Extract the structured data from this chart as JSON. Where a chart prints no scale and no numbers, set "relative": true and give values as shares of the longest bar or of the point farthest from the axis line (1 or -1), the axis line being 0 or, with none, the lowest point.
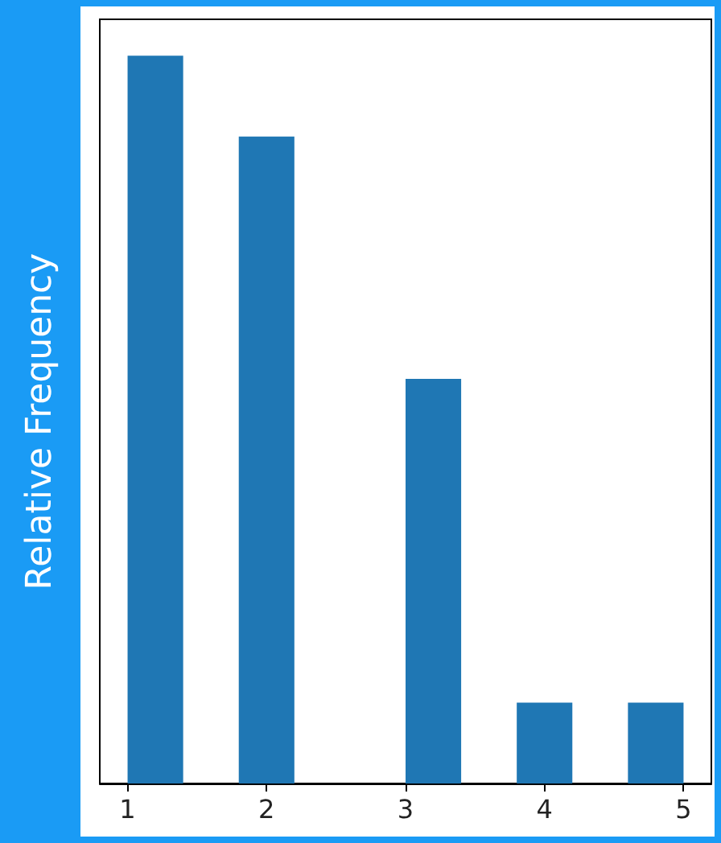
{
  "chart_data": {
    "type": "bar",
    "ylabel": "Relative Frequency",
    "relative": true,
    "color": "#1f77b4",
    "x": [
      1.2,
      2,
      3.2,
      4,
      4.8
    ],
    "values": [
      1,
      0.889,
      0.556,
      0.111,
      0.111
    ],
    "xlim": [
      0.8,
      5.2
    ],
    "xticks": [
      1,
      2,
      3,
      4,
      5
    ],
    "grid": false
  }
}
